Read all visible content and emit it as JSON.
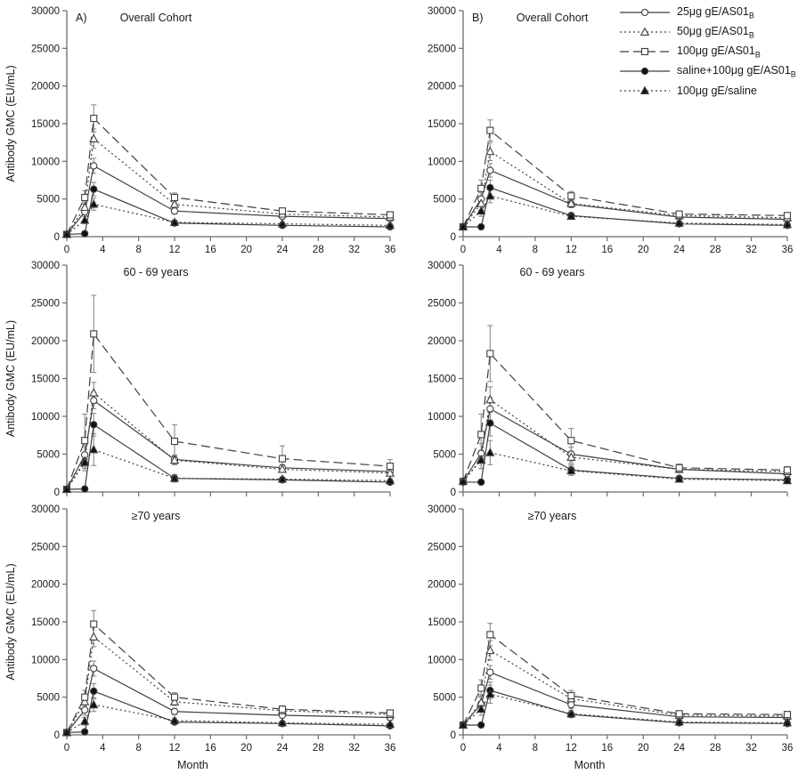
{
  "figure": {
    "xlabel": "Month",
    "ylabel": "Antibody GMC (EU/mL)"
  },
  "colors": {
    "line": "#3f3f3f",
    "marker_fill": "#111111",
    "error_bar": "#8c8c8c",
    "axis": "#6b6b6b",
    "text": "#1a1a1a"
  },
  "chart_data": {
    "type": "line",
    "xlabel": "Month",
    "ylabel": "Antibody GMC (EU/mL)",
    "xlim": [
      0,
      36
    ],
    "ylim": [
      0,
      30000
    ],
    "xticks": [
      0,
      4,
      8,
      12,
      16,
      20,
      24,
      28,
      32,
      36
    ],
    "yticks": [
      0,
      5000,
      10000,
      15000,
      20000,
      25000,
      30000
    ],
    "x": [
      0,
      2,
      3,
      12,
      24,
      36
    ],
    "legend_position": "top-right",
    "grid": false,
    "series_defs": [
      {
        "label": "25μg gE/AS01",
        "sub": "B",
        "marker": "circle-open",
        "line": "solid"
      },
      {
        "label": "50μg gE/AS01",
        "sub": "B",
        "marker": "triangle-open",
        "line": "dotted"
      },
      {
        "label": "100μg gE/AS01",
        "sub": "B",
        "marker": "square-open",
        "line": "dashed"
      },
      {
        "label": "saline+100μg gE/AS01",
        "sub": "B",
        "marker": "circle-filled",
        "line": "solid"
      },
      {
        "label": "100μg gE/saline",
        "sub": "",
        "marker": "triangle-filled",
        "line": "dotted"
      }
    ],
    "panels": [
      {
        "panel_label": "A)",
        "title": "Overall Cohort",
        "series": [
          {
            "name": "25μg gE/AS01B",
            "values": [
              300,
              3300,
              9400,
              3400,
              2700,
              2400
            ],
            "errors": [
              80,
              600,
              1000,
              400,
              300,
              250
            ]
          },
          {
            "name": "50μg gE/AS01B",
            "values": [
              300,
              3900,
              13000,
              4300,
              3000,
              2600
            ],
            "errors": [
              80,
              700,
              1300,
              500,
              350,
              300
            ]
          },
          {
            "name": "100μg gE/AS01B",
            "values": [
              300,
              5200,
              15700,
              5200,
              3400,
              2900
            ],
            "errors": [
              80,
              900,
              1800,
              600,
              400,
              350
            ]
          },
          {
            "name": "saline+100μg gE/AS01B",
            "values": [
              300,
              400,
              6300,
              1800,
              1500,
              1300
            ],
            "errors": [
              80,
              100,
              900,
              250,
              200,
              180
            ]
          },
          {
            "name": "100μg gE/saline",
            "values": [
              300,
              2200,
              4300,
              1900,
              1700,
              1500
            ],
            "errors": [
              80,
              500,
              800,
              300,
              250,
              200
            ]
          }
        ]
      },
      {
        "panel_label": "B)",
        "title": "Overall Cohort",
        "series": [
          {
            "name": "25μg gE/AS01B",
            "values": [
              1300,
              5000,
              8800,
              4300,
              2600,
              2300
            ],
            "errors": [
              100,
              800,
              900,
              450,
              300,
              250
            ]
          },
          {
            "name": "50μg gE/AS01B",
            "values": [
              1300,
              4400,
              11300,
              4400,
              2800,
              2500
            ],
            "errors": [
              100,
              900,
              1200,
              500,
              300,
              250
            ]
          },
          {
            "name": "100μg gE/AS01B",
            "values": [
              1300,
              6400,
              14100,
              5400,
              3000,
              2800
            ],
            "errors": [
              100,
              1100,
              1400,
              600,
              350,
              300
            ]
          },
          {
            "name": "saline+100μg gE/AS01B",
            "values": [
              1300,
              1300,
              6500,
              2800,
              1700,
              1500
            ],
            "errors": [
              100,
              100,
              1000,
              350,
              200,
              200
            ]
          },
          {
            "name": "100μg gE/saline",
            "values": [
              1300,
              3400,
              5400,
              2700,
              1800,
              1600
            ],
            "errors": [
              100,
              700,
              900,
              350,
              250,
              200
            ]
          }
        ]
      },
      {
        "panel_label": "",
        "title": "60 - 69 years",
        "series": [
          {
            "name": "25μg gE/AS01B",
            "values": [
              350,
              4900,
              12100,
              4300,
              3200,
              2700
            ],
            "errors": [
              80,
              1100,
              1100,
              600,
              400,
              350
            ]
          },
          {
            "name": "50μg gE/AS01B",
            "values": [
              350,
              4100,
              13100,
              4200,
              3000,
              2500
            ],
            "errors": [
              80,
              1000,
              1400,
              600,
              400,
              350
            ]
          },
          {
            "name": "100μg gE/AS01B",
            "values": [
              350,
              6800,
              20900,
              6700,
              4400,
              3400
            ],
            "errors": [
              80,
              3500,
              5100,
              2200,
              1700,
              900
            ]
          },
          {
            "name": "saline+100μg gE/AS01B",
            "values": [
              350,
              400,
              8900,
              1800,
              1600,
              1300
            ],
            "errors": [
              80,
              100,
              1500,
              400,
              250,
              250
            ]
          },
          {
            "name": "100μg gE/saline",
            "values": [
              350,
              3900,
              5600,
              1800,
              1700,
              1500
            ],
            "errors": [
              80,
              1100,
              2100,
              500,
              300,
              250
            ]
          }
        ]
      },
      {
        "panel_label": "",
        "title": "60 - 69 years",
        "series": [
          {
            "name": "25μg gE/AS01B",
            "values": [
              1400,
              5100,
              11000,
              5000,
              3000,
              2400
            ],
            "errors": [
              150,
              1300,
              1500,
              900,
              450,
              350
            ]
          },
          {
            "name": "50μg gE/AS01B",
            "values": [
              1400,
              4300,
              12200,
              4600,
              3000,
              2700
            ],
            "errors": [
              150,
              1200,
              1700,
              800,
              450,
              400
            ]
          },
          {
            "name": "100μg gE/AS01B",
            "values": [
              1400,
              7600,
              18300,
              6800,
              3200,
              2900
            ],
            "errors": [
              150,
              2700,
              3700,
              1600,
              500,
              450
            ]
          },
          {
            "name": "saline+100μg gE/AS01B",
            "values": [
              1300,
              1300,
              9100,
              2900,
              1800,
              1600
            ],
            "errors": [
              150,
              150,
              1700,
              700,
              300,
              300
            ]
          },
          {
            "name": "100μg gE/saline",
            "values": [
              1400,
              4200,
              5200,
              2800,
              1700,
              1500
            ],
            "errors": [
              150,
              1100,
              1600,
              600,
              300,
              300
            ]
          }
        ]
      },
      {
        "panel_label": "",
        "title": "≥70 years",
        "series": [
          {
            "name": "25μg gE/AS01B",
            "values": [
              300,
              3300,
              8800,
              3100,
              2600,
              2300
            ],
            "errors": [
              80,
              700,
              1000,
              400,
              350,
              300
            ]
          },
          {
            "name": "50μg gE/AS01B",
            "values": [
              300,
              4400,
              13000,
              4400,
              3200,
              2700
            ],
            "errors": [
              80,
              900,
              1300,
              500,
              400,
              350
            ]
          },
          {
            "name": "100μg gE/AS01B",
            "values": [
              300,
              5000,
              14700,
              5000,
              3400,
              2900
            ],
            "errors": [
              80,
              900,
              1800,
              600,
              450,
              400
            ]
          },
          {
            "name": "saline+100μg gE/AS01B",
            "values": [
              300,
              400,
              5800,
              1700,
              1500,
              1200
            ],
            "errors": [
              80,
              100,
              1000,
              250,
              200,
              180
            ]
          },
          {
            "name": "100μg gE/saline",
            "values": [
              300,
              1800,
              4000,
              1900,
              1600,
              1400
            ],
            "errors": [
              80,
              500,
              900,
              300,
              250,
              200
            ]
          }
        ]
      },
      {
        "panel_label": "",
        "title": "≥70 years",
        "series": [
          {
            "name": "25μg gE/AS01B",
            "values": [
              1300,
              4100,
              8300,
              4000,
              2400,
              2300
            ],
            "errors": [
              100,
              900,
              900,
              500,
              300,
              250
            ]
          },
          {
            "name": "50μg gE/AS01B",
            "values": [
              1300,
              4300,
              11200,
              4800,
              2600,
              2500
            ],
            "errors": [
              100,
              1000,
              1300,
              600,
              300,
              300
            ]
          },
          {
            "name": "100μg gE/AS01B",
            "values": [
              1300,
              6200,
              13300,
              5200,
              2800,
              2700
            ],
            "errors": [
              100,
              1100,
              1500,
              700,
              350,
              300
            ]
          },
          {
            "name": "saline+100μg gE/AS01B",
            "values": [
              1300,
              1300,
              5900,
              2700,
              1600,
              1500
            ],
            "errors": [
              100,
              100,
              1100,
              400,
              250,
              200
            ]
          },
          {
            "name": "100μg gE/saline",
            "values": [
              1300,
              3400,
              5400,
              2800,
              1700,
              1600
            ],
            "errors": [
              100,
              800,
              1200,
              450,
              250,
              250
            ]
          }
        ]
      }
    ]
  }
}
